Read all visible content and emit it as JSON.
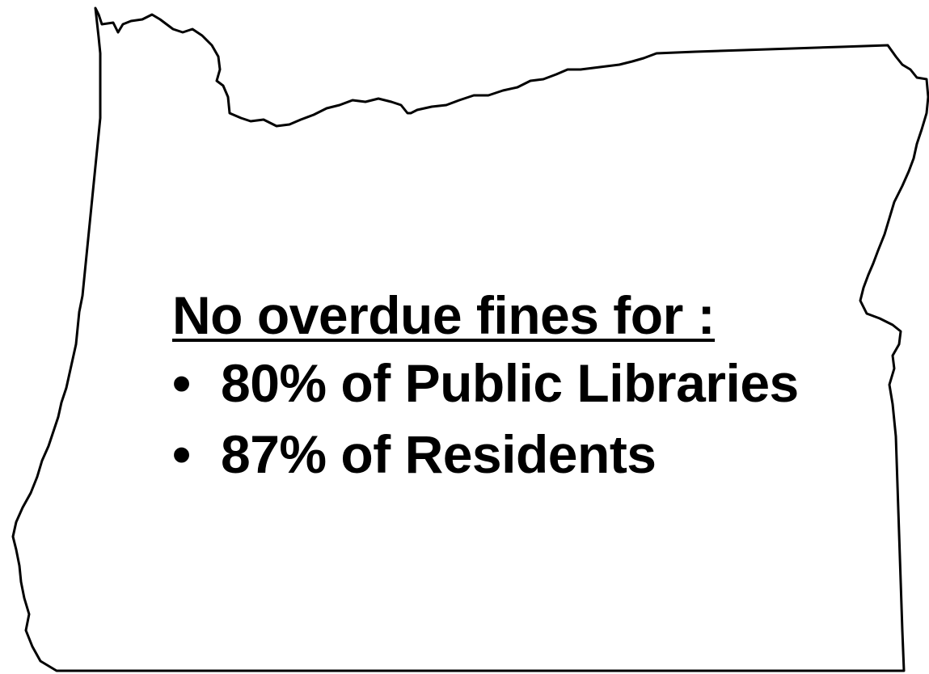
{
  "map": {
    "region": "Oregon",
    "outline_color": "#000000",
    "fill_color": "#ffffff"
  },
  "callout": {
    "heading": "No overdue fines for :",
    "items": [
      {
        "bullet": "•",
        "text": "80% of Public Libraries",
        "percent": 80
      },
      {
        "bullet": "•",
        "text": "87% of Residents",
        "percent": 87
      }
    ]
  }
}
